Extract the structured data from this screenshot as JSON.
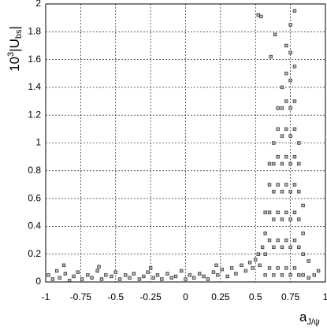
{
  "chart_data": {
    "type": "scatter",
    "xlabel": {
      "main": "a",
      "sub": "J/ψ"
    },
    "ylabel": {
      "base": "10",
      "sup": "3",
      "main": "|U",
      "sub": "bs",
      "end": "|"
    },
    "xlim": [
      -1,
      1
    ],
    "ylim": [
      0,
      2
    ],
    "xticks": [
      -1,
      -0.75,
      -0.5,
      -0.25,
      0,
      0.25,
      0.5,
      0.75,
      1
    ],
    "yticks": [
      0,
      0.2,
      0.4,
      0.6,
      0.8,
      1,
      1.2,
      1.4,
      1.6,
      1.8,
      2
    ],
    "grid": true,
    "color": "#333333",
    "x": [
      -0.98,
      -0.95,
      -0.92,
      -0.9,
      -0.86,
      -0.83,
      -0.8,
      -0.77,
      -0.74,
      -0.7,
      -0.67,
      -0.63,
      -0.6,
      -0.57,
      -0.53,
      -0.5,
      -0.47,
      -0.43,
      -0.4,
      -0.37,
      -0.33,
      -0.3,
      -0.27,
      -0.23,
      -0.2,
      -0.17,
      -0.13,
      -0.1,
      -0.07,
      -0.03,
      0,
      0.03,
      0.06,
      0.1,
      0.13,
      0.16,
      0.2,
      0.23,
      0.26,
      0.3,
      0.33,
      0.36,
      0.4,
      0.43,
      0.46,
      0.48,
      0.5,
      0.52,
      0.53,
      0.55,
      -0.87,
      -0.25,
      0.22,
      -0.62,
      0.57,
      0.57,
      0.57,
      0.57,
      0.6,
      0.6,
      0.6,
      0.6,
      0.6,
      0.63,
      0.63,
      0.63,
      0.63,
      0.63,
      0.63,
      0.66,
      0.66,
      0.66,
      0.66,
      0.66,
      0.66,
      0.66,
      0.69,
      0.69,
      0.69,
      0.69,
      0.69,
      0.69,
      0.69,
      0.69,
      0.72,
      0.72,
      0.72,
      0.72,
      0.72,
      0.72,
      0.72,
      0.72,
      0.72,
      0.75,
      0.75,
      0.75,
      0.75,
      0.75,
      0.75,
      0.75,
      0.75,
      0.75,
      0.75,
      0.78,
      0.78,
      0.78,
      0.78,
      0.78,
      0.78,
      0.78,
      0.78,
      0.78,
      0.81,
      0.81,
      0.81,
      0.81,
      0.81,
      0.81,
      0.84,
      0.84,
      0.84,
      0.84,
      0.88,
      0.88,
      0.92,
      0.52,
      0.54,
      0.61,
      0.64,
      0.95
    ],
    "values": [
      0.05,
      0.02,
      0.08,
      0.03,
      0.06,
      0.01,
      0.04,
      0.07,
      0.02,
      0.05,
      0.03,
      0.08,
      0.02,
      0.05,
      0.04,
      0.07,
      0.02,
      0.05,
      0.03,
      0.06,
      0.02,
      0.04,
      0.07,
      0.03,
      0.05,
      0.02,
      0.06,
      0.03,
      0.04,
      0.08,
      0.02,
      0.05,
      0.03,
      0.06,
      0.04,
      0.02,
      0.07,
      0.05,
      0.09,
      0.04,
      0.1,
      0.06,
      0.12,
      0.08,
      0.14,
      0.1,
      0.16,
      0.2,
      0.12,
      0.25,
      0.12,
      0.1,
      0.12,
      0.11,
      0.05,
      0.2,
      0.35,
      0.5,
      0.1,
      0.3,
      0.5,
      0.7,
      0.85,
      0.05,
      0.25,
      0.45,
      0.65,
      0.85,
      1.0,
      0.1,
      0.3,
      0.5,
      0.7,
      0.9,
      1.1,
      1.25,
      0.05,
      0.25,
      0.45,
      0.65,
      0.85,
      1.05,
      1.25,
      1.4,
      0.1,
      0.3,
      0.5,
      0.7,
      0.9,
      1.1,
      1.3,
      1.5,
      1.7,
      0.05,
      0.25,
      0.45,
      0.65,
      0.85,
      1.05,
      1.25,
      1.45,
      1.65,
      1.85,
      0.1,
      0.3,
      0.5,
      0.7,
      0.9,
      1.1,
      1.3,
      1.55,
      1.95,
      0.05,
      0.25,
      0.45,
      0.65,
      0.85,
      1.0,
      0.05,
      0.2,
      0.35,
      0.55,
      0.03,
      0.15,
      0.05,
      1.92,
      1.91,
      1.62,
      1.78,
      0.08
    ]
  }
}
